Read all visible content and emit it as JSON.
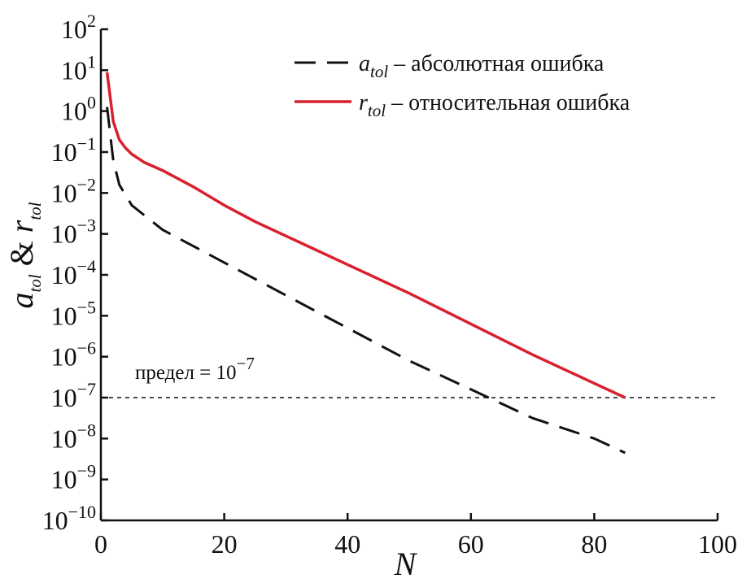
{
  "chart_data": {
    "type": "line",
    "xlabel": "N",
    "ylabel": {
      "a": "a",
      "a_sub": "tol",
      "amp": " & ",
      "r": "r",
      "r_sub": "tol"
    },
    "x_ticks": [
      "0",
      "20",
      "40",
      "60",
      "80",
      "100"
    ],
    "y_ticks": [
      {
        "base": "10",
        "exp": "2"
      },
      {
        "base": "10",
        "exp": "1"
      },
      {
        "base": "10",
        "exp": "0"
      },
      {
        "base": "10",
        "exp": "−1"
      },
      {
        "base": "10",
        "exp": "−2"
      },
      {
        "base": "10",
        "exp": "−3"
      },
      {
        "base": "10",
        "exp": "−4"
      },
      {
        "base": "10",
        "exp": "−5"
      },
      {
        "base": "10",
        "exp": "−6"
      },
      {
        "base": "10",
        "exp": "−7"
      },
      {
        "base": "10",
        "exp": "−8"
      },
      {
        "base": "10",
        "exp": "−9"
      },
      {
        "base": "10",
        "exp": "−10"
      }
    ],
    "xlim": [
      0,
      100
    ],
    "ylim_log10": [
      -10,
      2
    ],
    "y_scale": "log",
    "grid": false,
    "legend_position": "top-right",
    "series": [
      {
        "name": "a_tol",
        "legend": {
          "symbol": "a",
          "sub": "tol",
          "text": " – абсолютная ошибка"
        },
        "style": "dashed",
        "color": "#111111",
        "x": [
          1,
          2,
          3,
          5,
          10,
          20,
          30,
          40,
          50,
          60,
          70,
          80,
          85
        ],
        "log10_y": [
          0.1,
          -1.2,
          -1.8,
          -2.3,
          -2.9,
          -3.7,
          -4.5,
          -5.3,
          -6.1,
          -6.8,
          -7.5,
          -8.0,
          -8.35
        ]
      },
      {
        "name": "r_tol",
        "legend": {
          "symbol": "r",
          "sub": "tol",
          "text": " – относительная ошибка"
        },
        "style": "solid",
        "color": "#d9202e",
        "x": [
          1,
          2,
          3,
          4,
          5,
          7,
          10,
          15,
          20,
          25,
          30,
          40,
          50,
          60,
          70,
          80,
          85
        ],
        "log10_y": [
          0.95,
          -0.25,
          -0.7,
          -0.9,
          -1.05,
          -1.25,
          -1.45,
          -1.85,
          -2.3,
          -2.7,
          -3.05,
          -3.75,
          -4.45,
          -5.2,
          -5.95,
          -6.65,
          -7.0
        ]
      }
    ],
    "threshold": {
      "log10_y": -7,
      "style": "dotted",
      "label_prefix": "предел = ",
      "label_base": "10",
      "label_exp": "−7"
    }
  }
}
